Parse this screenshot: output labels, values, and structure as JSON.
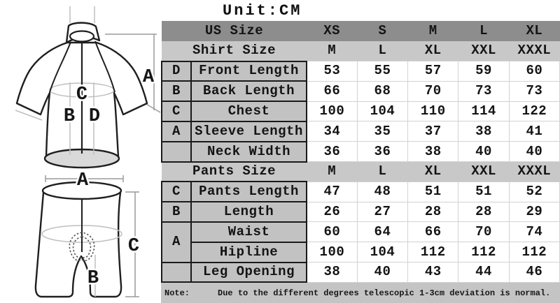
{
  "title": "Unit:CM",
  "chart_data": {
    "type": "table",
    "title": "Unit:CM",
    "columns_note": "letter | measurement | 5 size columns",
    "rows": [
      {
        "kind": "size-header",
        "shade": "dark",
        "label": "US Size",
        "values": [
          "XS",
          "S",
          "M",
          "L",
          "XL"
        ]
      },
      {
        "kind": "size-header",
        "shade": "light",
        "label": "Shirt Size",
        "values": [
          "M",
          "L",
          "XL",
          "XXL",
          "XXXL"
        ]
      },
      {
        "kind": "data",
        "letter": "D",
        "name": "Front Length",
        "values": [
          "53",
          "55",
          "57",
          "59",
          "60"
        ]
      },
      {
        "kind": "data",
        "letter": "B",
        "name": "Back Length",
        "values": [
          "66",
          "68",
          "70",
          "73",
          "73"
        ]
      },
      {
        "kind": "data",
        "letter": "C",
        "name": "Chest",
        "values": [
          "100",
          "104",
          "110",
          "114",
          "122"
        ]
      },
      {
        "kind": "data",
        "letter": "A",
        "name": "Sleeve Length",
        "values": [
          "34",
          "35",
          "37",
          "38",
          "41"
        ]
      },
      {
        "kind": "data",
        "letter": "",
        "name": "Neck Width",
        "values": [
          "36",
          "36",
          "38",
          "40",
          "40"
        ]
      },
      {
        "kind": "size-header",
        "shade": "light",
        "label": "Pants Size",
        "values": [
          "M",
          "L",
          "XL",
          "XXL",
          "XXXL"
        ]
      },
      {
        "kind": "data",
        "letter": "C",
        "name": "Pants Length",
        "values": [
          "47",
          "48",
          "51",
          "51",
          "52"
        ]
      },
      {
        "kind": "data",
        "letter": "B",
        "name": "Length",
        "values": [
          "26",
          "27",
          "28",
          "28",
          "29"
        ]
      },
      {
        "kind": "data",
        "letter": "A",
        "letter_rowspan": 2,
        "name": "Waist",
        "values": [
          "60",
          "64",
          "66",
          "70",
          "74"
        ]
      },
      {
        "kind": "data",
        "letter_merged": true,
        "name": "Hipline",
        "values": [
          "100",
          "104",
          "112",
          "112",
          "112"
        ]
      },
      {
        "kind": "data",
        "letter": "",
        "name": "Leg Opening",
        "values": [
          "38",
          "40",
          "43",
          "44",
          "46"
        ]
      }
    ]
  },
  "note": {
    "label": "Note:",
    "text": "Due to the different degrees telescopic 1-3cm deviation is normal."
  },
  "diagram": {
    "jersey": {
      "labels": {
        "A": "A",
        "B": "B",
        "C": "C",
        "D": "D"
      }
    },
    "shorts": {
      "labels": {
        "A": "A",
        "B": "B",
        "C": "C"
      }
    }
  },
  "colors": {
    "header_dark": "#8d8d8d",
    "header_light": "#c8c8c8",
    "label_cell_gray": "#c2c2c2",
    "note_bg": "#c4c4c4",
    "border_black": "#1a1a1a",
    "grid_light": "#d2d2d2",
    "hem_fill": "#d9d9d9"
  }
}
